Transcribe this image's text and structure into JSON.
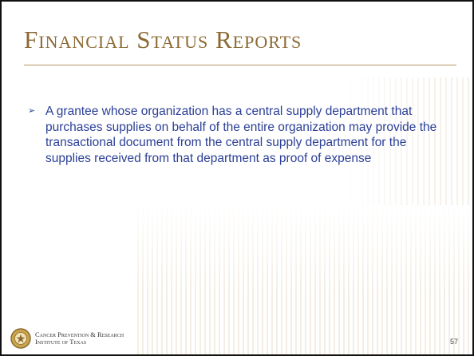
{
  "header": {
    "title": "Financial Status Reports"
  },
  "body": {
    "bullets": [
      "A grantee whose organization has a central supply department that purchases supplies on behalf of the entire organization may provide the transactional document from the central supply department for the supplies received from that department as proof of expense"
    ]
  },
  "footer": {
    "org_lines": [
      "Cancer Prevention & Research",
      "Institute of Texas"
    ],
    "page_number": 57
  }
}
